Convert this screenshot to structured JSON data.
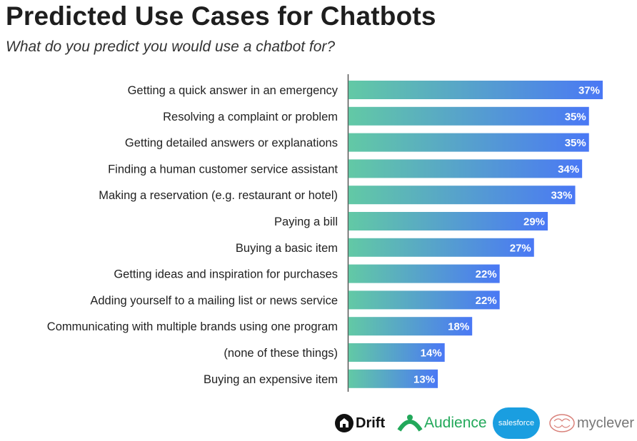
{
  "chart_data": {
    "type": "bar",
    "orientation": "horizontal",
    "title": "Predicted Use Cases for Chatbots",
    "subtitle": "What do you predict you would use a chatbot for?",
    "categories": [
      "Getting a quick answer in an emergency",
      "Resolving a complaint or problem",
      "Getting detailed answers or explanations",
      "Finding a human customer service assistant",
      "Making a reservation (e.g. restaurant or hotel)",
      "Paying a bill",
      "Buying a basic item",
      "Getting ideas and inspiration for purchases",
      "Adding yourself to a mailing list or news service",
      "Communicating with multiple brands using one program",
      "(none of these things)",
      "Buying an expensive item"
    ],
    "values": [
      37,
      35,
      35,
      34,
      33,
      29,
      27,
      22,
      22,
      18,
      14,
      13
    ],
    "value_suffix": "%",
    "xlim": [
      0,
      40
    ],
    "grid": false,
    "colors": {
      "gradient_start": "#62c9a5",
      "gradient_end": "#4a78f5"
    }
  },
  "logos": [
    "Drift",
    "Audience",
    "salesforce",
    "myclever"
  ]
}
